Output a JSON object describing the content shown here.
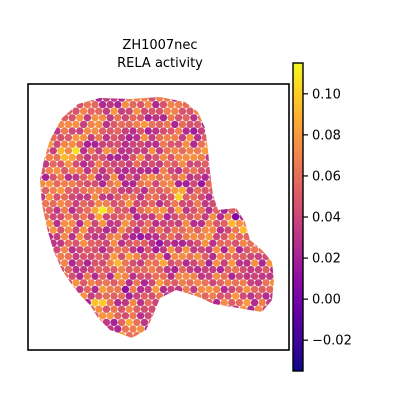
{
  "chart_data": {
    "type": "heatmap",
    "subtype": "hexbin spatial map",
    "title_lines": [
      "ZH1007nec",
      "RELA activity"
    ],
    "colormap": "plasma",
    "colorbar": {
      "vmin": -0.035,
      "vmax": 0.115,
      "ticks": [
        -0.02,
        0.0,
        0.02,
        0.04,
        0.06,
        0.08,
        0.1
      ],
      "tick_labels": [
        "−0.02",
        "0.00",
        "0.02",
        "0.04",
        "0.06",
        "0.08",
        "0.10"
      ]
    },
    "grid": false,
    "axes_ticks_visible": false,
    "value_summary": {
      "typical_range": [
        0.02,
        0.08
      ],
      "min_observed": -0.03,
      "max_observed": 0.11,
      "note": "spot values vary across the tissue; high (yellow) spots along lower-left and center, low (purple) spots scattered in center and right lobe"
    }
  }
}
